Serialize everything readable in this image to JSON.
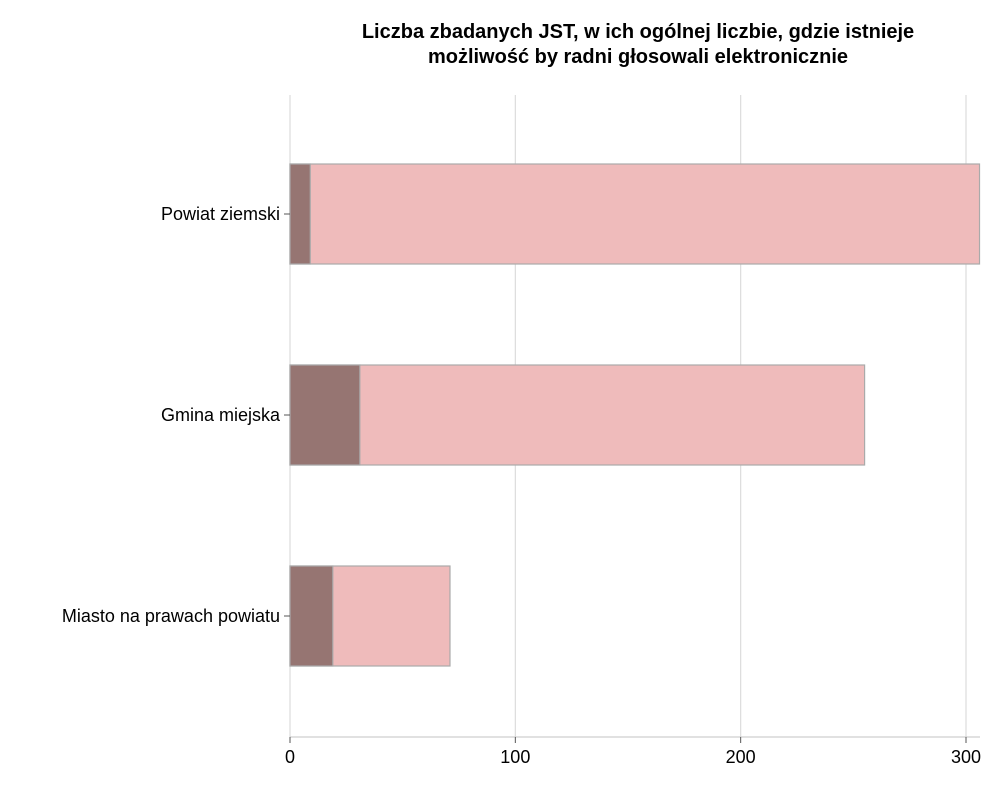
{
  "chart_data": {
    "type": "bar",
    "orientation": "horizontal",
    "stacked": false,
    "overlay": true,
    "title": [
      "Liczba zbadanych JST, w ich ogólnej liczbie, gdzie istnieje",
      "możliwość by radni głosowali elektronicznie"
    ],
    "xlabel": "",
    "ylabel": "",
    "categories": [
      "Powiat ziemski",
      "Gmina miejska",
      "Miasto na prawach powiatu"
    ],
    "series": [
      {
        "values": [
          306,
          255,
          71
        ],
        "color": "#efbbbb"
      },
      {
        "values": [
          9,
          31,
          19
        ],
        "color": "#967572"
      }
    ],
    "xlim": [
      0,
      306
    ],
    "xticks": [
      0,
      100,
      200,
      300
    ],
    "xtick_labels": [
      "0",
      "100",
      "200",
      "300"
    ],
    "grid": "vertical",
    "legend": "none",
    "colors": {
      "grid": "#dcdcdc",
      "axis": "#cfcfcf",
      "bar_edge": "#aaaaaa"
    }
  }
}
